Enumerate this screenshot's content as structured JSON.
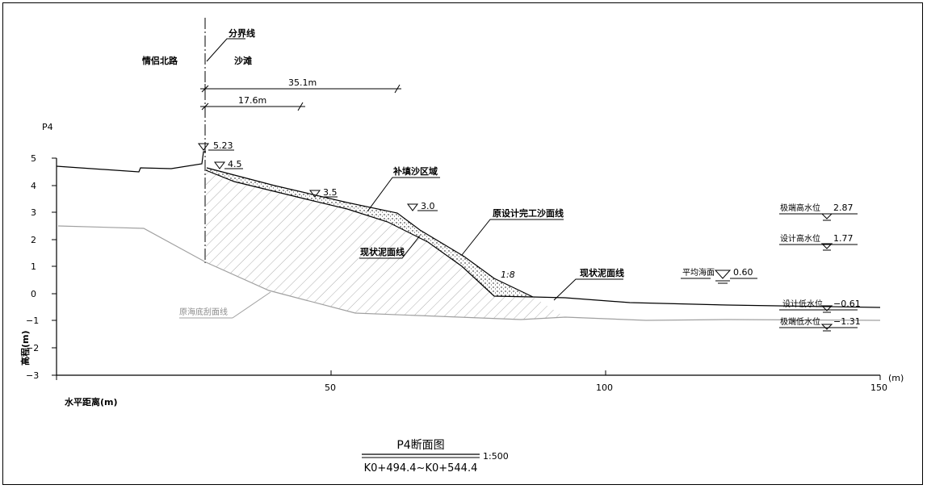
{
  "profile_name": "P4",
  "road_label": "情侣北路",
  "beach_label": "沙滩",
  "boundary_label": "分界线",
  "dim_long": "35.1m",
  "dim_short": "17.6m",
  "elev_top": "5.23",
  "elev_a": "4.5",
  "elev_b": "3.5",
  "elev_c": "3.0",
  "fill_label": "补填沙区域",
  "design_label": "原设计完工沙面线",
  "mud_label_upper": "现状泥面线",
  "mud_label_lower": "现状泥面线",
  "seabed_label": "原海底刮面线",
  "slope_label": "1:8",
  "mean_sea_label": "平均海面",
  "mean_sea_value": "0.60",
  "water_levels": [
    {
      "label": "极端高水位",
      "value": "2.87"
    },
    {
      "label": "设计高水位",
      "value": "1.77"
    },
    {
      "label": "设计低水位",
      "value": "−0.61"
    },
    {
      "label": "极端低水位",
      "value": "−1.31"
    }
  ],
  "y_axis_label": "高程(m)",
  "y_ticks": [
    "5",
    "4",
    "3",
    "2",
    "1",
    "0",
    "−1",
    "−2",
    "−3"
  ],
  "x_axis_label": "水平距离(m)",
  "x_ticks": [
    "50",
    "100",
    "150"
  ],
  "x_unit": "(m)",
  "title": "P4断面图",
  "scale": "1:500",
  "chainage": "K0+494.4~K0+544.4"
}
